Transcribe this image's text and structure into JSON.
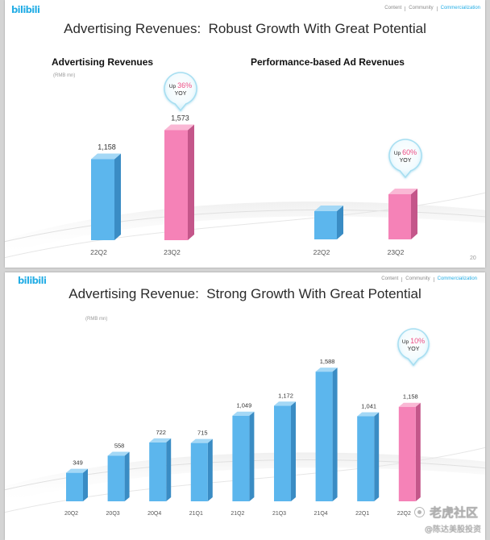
{
  "slides": [
    {
      "logo": "bilibili",
      "nav": {
        "content": "Content",
        "community": "Community",
        "commercialization": "Commercialization"
      },
      "title": "Advertising Revenues:  Robust Growth With Great Potential",
      "page_number": "20"
    },
    {
      "logo": "bilibili",
      "nav": {
        "content": "Content",
        "community": "Community",
        "commercialization": "Commercialization"
      },
      "title": "Advertising Revenue:  Strong Growth With Great Potential"
    }
  ],
  "colors": {
    "brand": "#23ade5",
    "bar": {
      "front": "#5cb6ed",
      "side": "#3a8cc4",
      "top": "#a4d8f6"
    },
    "highlight_bar": {
      "front": "#f582b7",
      "side": "#c4568a",
      "top": "#fab8d5"
    },
    "callout_value": "#ec4d84",
    "callout_border": "#a6def1"
  },
  "watermark": {
    "brand": "老虎社区",
    "handle": "@陈达美股投资"
  },
  "chart_data": [
    {
      "type": "bar",
      "title": "Advertising Revenues",
      "unit": "(RMB mn)",
      "categories": [
        "22Q2",
        "23Q2"
      ],
      "values": [
        1158,
        1573
      ],
      "value_labels": [
        "1,158",
        "1,573"
      ],
      "highlight_category": "23Q2",
      "callout": {
        "prefix": "Up",
        "value": "36%",
        "suffix": "YOY"
      }
    },
    {
      "type": "bar",
      "title": "Performance-based Ad Revenues",
      "categories": [
        "22Q2",
        "23Q2"
      ],
      "values": [
        1,
        1.6
      ],
      "highlight_category": "23Q2",
      "callout": {
        "prefix": "Up",
        "value": "60%",
        "suffix": "YOY"
      }
    },
    {
      "type": "bar",
      "unit": "(RMB mn)",
      "categories": [
        "20Q2",
        "20Q3",
        "20Q4",
        "21Q1",
        "21Q2",
        "21Q3",
        "21Q4",
        "22Q1",
        "22Q2"
      ],
      "values": [
        349,
        558,
        722,
        715,
        1049,
        1172,
        1588,
        1041,
        1158
      ],
      "value_labels": [
        "349",
        "558",
        "722",
        "715",
        "1,049",
        "1,172",
        "1,588",
        "1,041",
        "1,158"
      ],
      "highlight_category": "22Q2",
      "callout": {
        "prefix": "Up",
        "value": "10%",
        "suffix": "YOY"
      }
    }
  ]
}
